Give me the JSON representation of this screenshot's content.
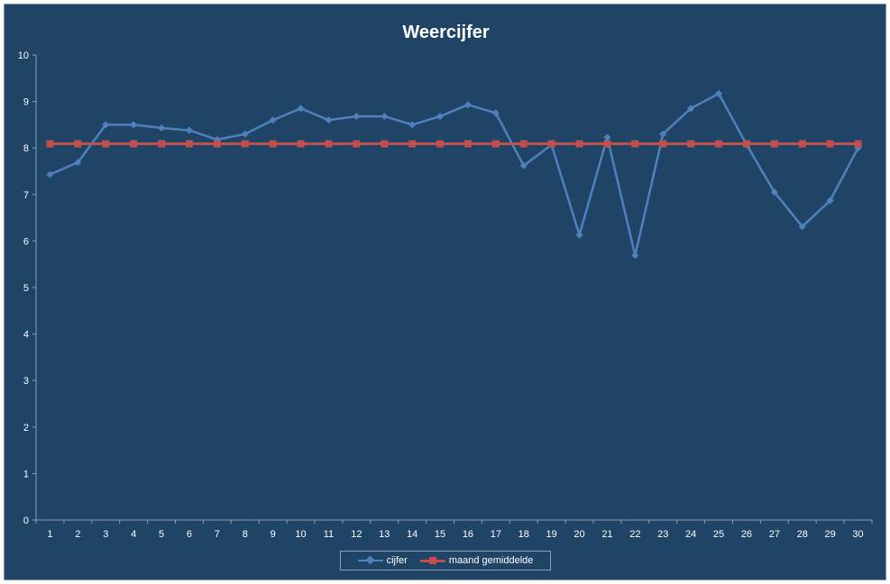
{
  "chart_data": {
    "type": "line",
    "title": "Weercijfer",
    "xlabel": "",
    "ylabel": "",
    "ylim": [
      0,
      10
    ],
    "yticks": [
      0,
      1,
      2,
      3,
      4,
      5,
      6,
      7,
      8,
      9,
      10
    ],
    "categories": [
      "1",
      "2",
      "3",
      "4",
      "5",
      "6",
      "7",
      "8",
      "9",
      "10",
      "11",
      "12",
      "13",
      "14",
      "15",
      "16",
      "17",
      "18",
      "19",
      "20",
      "21",
      "22",
      "23",
      "24",
      "25",
      "26",
      "27",
      "28",
      "29",
      "30"
    ],
    "series": [
      {
        "name": "cijfer",
        "color": "#4f81bd",
        "marker": "diamond",
        "values": [
          7.43,
          7.69,
          8.5,
          8.5,
          8.43,
          8.38,
          8.18,
          8.3,
          8.6,
          8.85,
          8.6,
          8.68,
          8.68,
          8.5,
          8.68,
          8.93,
          8.75,
          7.62,
          8.07,
          6.13,
          8.23,
          5.69,
          8.3,
          8.85,
          9.17,
          8.07,
          7.05,
          6.31,
          6.87,
          8.0
        ]
      },
      {
        "name": "maand gemiddelde",
        "color": "#c0504d",
        "marker": "square",
        "values": [
          8.09,
          8.09,
          8.09,
          8.09,
          8.09,
          8.09,
          8.09,
          8.09,
          8.09,
          8.09,
          8.09,
          8.09,
          8.09,
          8.09,
          8.09,
          8.09,
          8.09,
          8.09,
          8.09,
          8.09,
          8.09,
          8.09,
          8.09,
          8.09,
          8.09,
          8.09,
          8.09,
          8.09,
          8.09,
          8.09
        ]
      }
    ],
    "grid": false,
    "legend_position": "bottom"
  },
  "colors": {
    "background": "#1f4466",
    "axis": "#8aa0b5",
    "text": "#ffffff"
  }
}
